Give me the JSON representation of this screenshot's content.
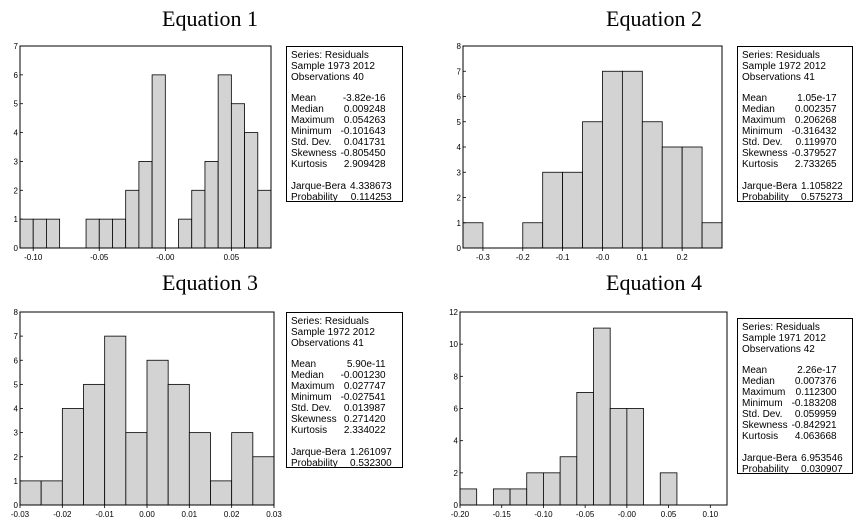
{
  "titles": [
    "Equation 1",
    "Equation 2",
    "Equation 3",
    "Equation 4"
  ],
  "stats": [
    {
      "series": "Series: Residuals",
      "sample": "Sample 1973 2012",
      "observations": "Observations 40",
      "rows": [
        [
          "Mean",
          "-3.82e-16"
        ],
        [
          "Median",
          "0.009248"
        ],
        [
          "Maximum",
          "0.054263"
        ],
        [
          "Minimum",
          "-0.101643"
        ],
        [
          "Std. Dev.",
          "0.041731"
        ],
        [
          "Skewness",
          "-0.805450"
        ],
        [
          "Kurtosis",
          "2.909428"
        ]
      ],
      "jb": [
        [
          "Jarque-Bera",
          "4.338673"
        ],
        [
          "Probability",
          "0.114253"
        ]
      ]
    },
    {
      "series": "Series: Residuals",
      "sample": "Sample 1972 2012",
      "observations": "Observations 41",
      "rows": [
        [
          "Mean",
          "1.05e-17"
        ],
        [
          "Median",
          "0.002357"
        ],
        [
          "Maximum",
          "0.206268"
        ],
        [
          "Minimum",
          "-0.316432"
        ],
        [
          "Std. Dev.",
          "0.119970"
        ],
        [
          "Skewness",
          "-0.379527"
        ],
        [
          "Kurtosis",
          "2.733265"
        ]
      ],
      "jb": [
        [
          "Jarque-Bera",
          "1.105822"
        ],
        [
          "Probability",
          "0.575273"
        ]
      ]
    },
    {
      "series": "Series: Residuals",
      "sample": "Sample 1972 2012",
      "observations": "Observations 41",
      "rows": [
        [
          "Mean",
          "5.90e-11"
        ],
        [
          "Median",
          "-0.001230"
        ],
        [
          "Maximum",
          "0.027747"
        ],
        [
          "Minimum",
          "-0.027541"
        ],
        [
          "Std. Dev.",
          "0.013987"
        ],
        [
          "Skewness",
          "0.271420"
        ],
        [
          "Kurtosis",
          "2.334022"
        ]
      ],
      "jb": [
        [
          "Jarque-Bera",
          "1.261097"
        ],
        [
          "Probability",
          "0.532300"
        ]
      ]
    },
    {
      "series": "Series: Residuals",
      "sample": "Sample 1971 2012",
      "observations": "Observations 42",
      "rows": [
        [
          "Mean",
          "2.26e-17"
        ],
        [
          "Median",
          "0.007376"
        ],
        [
          "Maximum",
          "0.112300"
        ],
        [
          "Minimum",
          "-0.183208"
        ],
        [
          "Std. Dev.",
          "0.059959"
        ],
        [
          "Skewness",
          "-0.842921"
        ],
        [
          "Kurtosis",
          "4.063668"
        ]
      ],
      "jb": [
        [
          "Jarque-Bera",
          "6.953546"
        ],
        [
          "Probability",
          "0.030907"
        ]
      ]
    }
  ],
  "chart_data": [
    {
      "type": "bar",
      "title": "Equation 1",
      "bar_color": "#d3d3d3",
      "bin_width": 0.01,
      "bin_start": -0.11,
      "values": [
        1,
        1,
        1,
        0,
        0,
        1,
        1,
        1,
        2,
        3,
        6,
        0,
        1,
        2,
        3,
        6,
        5,
        4,
        2
      ],
      "xlim": [
        -0.11,
        0.08
      ],
      "ylim": [
        0,
        7
      ],
      "xticks": [
        "-0.10",
        "-0.05",
        "-0.00",
        "0.05"
      ],
      "xtick_values": [
        -0.1,
        -0.05,
        0.0,
        0.05
      ],
      "yticks": [
        "0",
        "1",
        "2",
        "3",
        "4",
        "5",
        "6",
        "7"
      ],
      "ytick_values": [
        0,
        1,
        2,
        3,
        4,
        5,
        6,
        7
      ]
    },
    {
      "type": "bar",
      "title": "Equation 2",
      "bar_color": "#d3d3d3",
      "bin_width": 0.05,
      "bin_start": -0.35,
      "values": [
        1,
        0,
        0,
        1,
        3,
        3,
        5,
        7,
        7,
        5,
        4,
        4,
        1
      ],
      "xlim": [
        -0.35,
        0.3
      ],
      "ylim": [
        0,
        8
      ],
      "xticks": [
        "-0.3",
        "-0.2",
        "-0.1",
        "-0.0",
        "0.1",
        "0.2"
      ],
      "xtick_values": [
        -0.3,
        -0.2,
        -0.1,
        0.0,
        0.1,
        0.2
      ],
      "yticks": [
        "0",
        "1",
        "2",
        "3",
        "4",
        "5",
        "6",
        "7",
        "8"
      ],
      "ytick_values": [
        0,
        1,
        2,
        3,
        4,
        5,
        6,
        7,
        8
      ]
    },
    {
      "type": "bar",
      "title": "Equation 3",
      "bar_color": "#d3d3d3",
      "bin_width": 0.005,
      "bin_start": -0.03,
      "values": [
        1,
        1,
        4,
        5,
        7,
        3,
        6,
        5,
        3,
        1,
        3,
        2
      ],
      "xlim": [
        -0.03,
        0.03
      ],
      "ylim": [
        0,
        8
      ],
      "xticks": [
        "-0.03",
        "-0.02",
        "-0.01",
        "0.00",
        "0.01",
        "0.02",
        "0.03"
      ],
      "xtick_values": [
        -0.03,
        -0.02,
        -0.01,
        0.0,
        0.01,
        0.02,
        0.03
      ],
      "yticks": [
        "0",
        "1",
        "2",
        "3",
        "4",
        "5",
        "6",
        "7",
        "8"
      ],
      "ytick_values": [
        0,
        1,
        2,
        3,
        4,
        5,
        6,
        7,
        8
      ]
    },
    {
      "type": "bar",
      "title": "Equation 4",
      "bar_color": "#d3d3d3",
      "bin_width": 0.02,
      "bin_start": -0.2,
      "values": [
        1,
        0,
        1,
        1,
        2,
        2,
        3,
        7,
        11,
        6,
        6,
        0,
        2
      ],
      "xlim": [
        -0.2,
        0.12
      ],
      "ylim": [
        0,
        12
      ],
      "xticks": [
        "-0.20",
        "-0.15",
        "-0.10",
        "-0.05",
        "-0.00",
        "0.05",
        "0.10"
      ],
      "xtick_values": [
        -0.2,
        -0.15,
        -0.1,
        -0.05,
        0.0,
        0.05,
        0.1
      ],
      "yticks": [
        "0",
        "2",
        "4",
        "6",
        "8",
        "10",
        "12"
      ],
      "ytick_values": [
        0,
        2,
        4,
        6,
        8,
        10,
        12
      ]
    }
  ]
}
